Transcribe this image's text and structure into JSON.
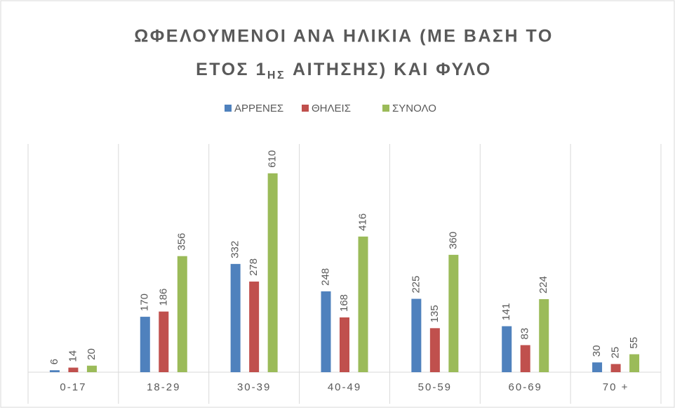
{
  "chart_data": {
    "type": "bar",
    "title": [
      "ΩΦΕΛΟΥΜΕΝΟΙ ΑΝΑ ΗΛΙΚΙΑ (ΜΕ ΒΑΣΗ ΤΟ",
      "ΕΤΟΣ 1",
      "ΗΣ",
      "ΑΙΤΗΣΗΣ) ΚΑΙ ΦΥΛΟ"
    ],
    "categories": [
      "0-17",
      "18-29",
      "30-39",
      "40-49",
      "50-59",
      "60-69",
      "70 +"
    ],
    "series": [
      {
        "name": "ΑΡΡΕΝΕΣ",
        "color": "#4f81bd",
        "values": [
          6,
          170,
          332,
          248,
          225,
          141,
          30
        ]
      },
      {
        "name": "ΘΗΛΕΙΣ",
        "color": "#c0504d",
        "values": [
          14,
          186,
          278,
          168,
          135,
          83,
          25
        ]
      },
      {
        "name": "ΣΥΝΟΛΟ",
        "color": "#9bbb59",
        "values": [
          20,
          356,
          610,
          416,
          360,
          224,
          55
        ]
      }
    ],
    "ylim": [
      0,
      700
    ],
    "legend": "top"
  }
}
